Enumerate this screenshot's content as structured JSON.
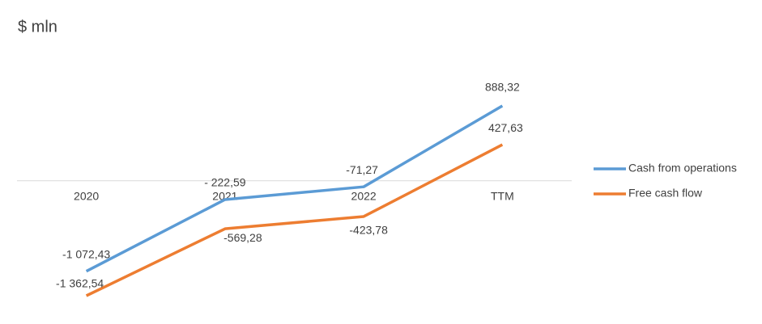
{
  "chart_data": {
    "type": "line",
    "title": "$ mln",
    "categories": [
      "2020",
      "2021",
      "2022",
      "TTM"
    ],
    "series": [
      {
        "name": "Cash from operations",
        "color": "#5b9bd5",
        "values": [
          -1072.43,
          -222.59,
          -71.27,
          888.32
        ],
        "value_labels": [
          "-1 072,43",
          "- 222,59",
          "-71,27",
          "888,32"
        ]
      },
      {
        "name": "Free cash flow",
        "color": "#ed7d31",
        "values": [
          -1362.54,
          -569.28,
          -423.78,
          427.63
        ],
        "value_labels": [
          "-1 362,54",
          "-569,28",
          "-423,78",
          "427,63"
        ]
      }
    ],
    "legend": "right"
  }
}
